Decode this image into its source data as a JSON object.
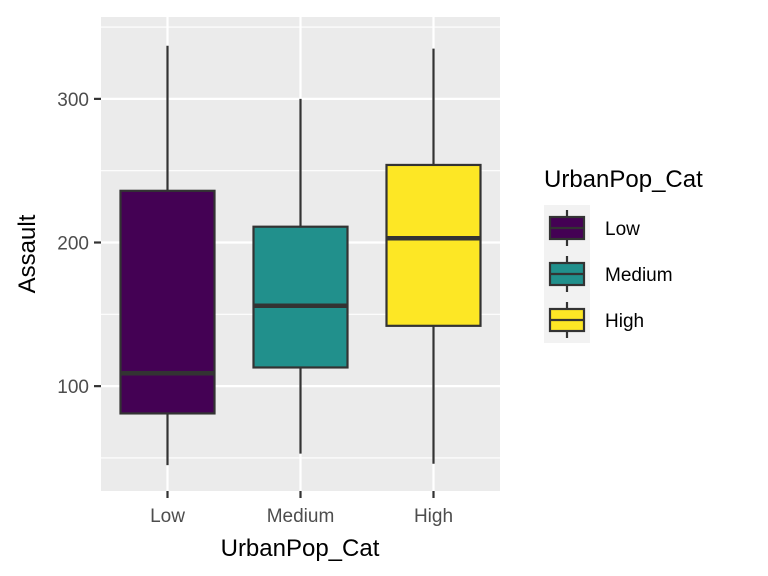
{
  "chart_data": {
    "type": "boxplot",
    "xlabel": "UrbanPop_Cat",
    "ylabel": "Assault",
    "categories": [
      "Low",
      "Medium",
      "High"
    ],
    "ylim": [
      27,
      357
    ],
    "yticks": [
      100,
      200,
      300
    ],
    "grid": true,
    "legend": {
      "title": "UrbanPop_Cat",
      "position": "right",
      "entries": [
        "Low",
        "Medium",
        "High"
      ]
    },
    "boxes": [
      {
        "category": "Low",
        "min": 45,
        "q1": 81,
        "median": 109,
        "q3": 236,
        "max": 337,
        "color": "#440154"
      },
      {
        "category": "Medium",
        "min": 53,
        "q1": 113,
        "median": 156,
        "q3": 211,
        "max": 300,
        "color": "#21908C"
      },
      {
        "category": "High",
        "min": 46,
        "q1": 142,
        "median": 203,
        "q3": 254,
        "max": 335,
        "color": "#FDE725"
      }
    ]
  }
}
